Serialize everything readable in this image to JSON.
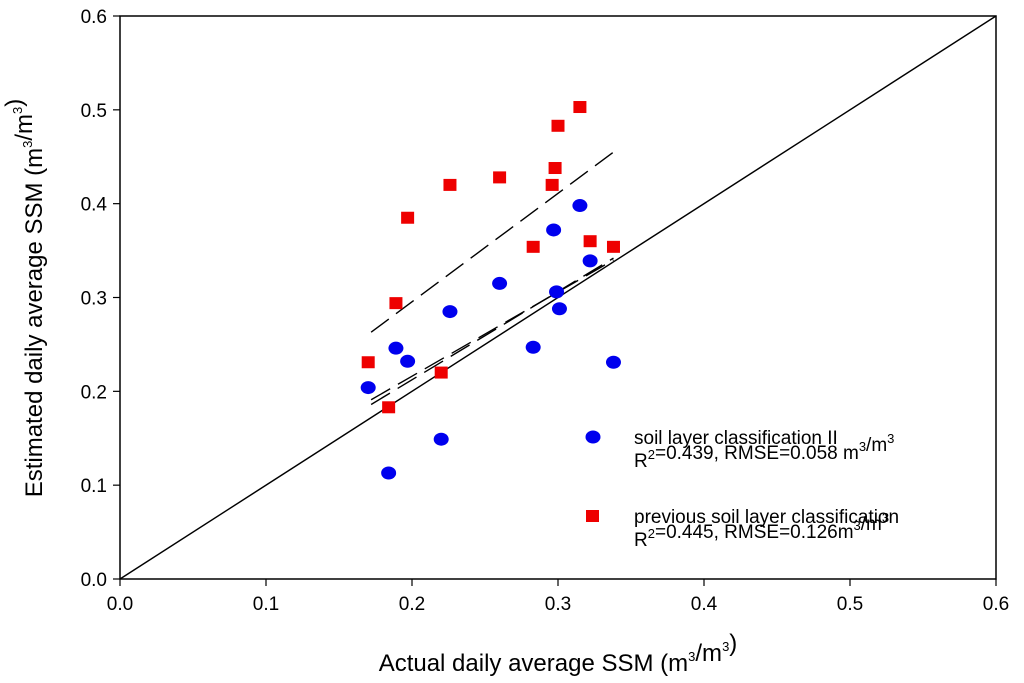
{
  "chart_data": {
    "type": "scatter",
    "xlabel": "Actual daily average SSM (m3/m3)",
    "ylabel": "Estimated daily average SSM (m3/m3)",
    "xlim": [
      0.0,
      0.6
    ],
    "ylim": [
      0.0,
      0.6
    ],
    "x_ticks": [
      "0.0",
      "0.1",
      "0.2",
      "0.3",
      "0.4",
      "0.5",
      "0.6"
    ],
    "y_ticks": [
      "0.0",
      "0.1",
      "0.2",
      "0.3",
      "0.4",
      "0.5",
      "0.6"
    ],
    "legend_position": "bottom-right",
    "reference_line": {
      "name": "1:1 line",
      "from": [
        0.0,
        0.0
      ],
      "to": [
        0.6,
        0.6
      ]
    },
    "series": [
      {
        "name": "soil layer classification II",
        "marker": "circle",
        "color": "#0000ee",
        "stats_prefix": "R",
        "stats_sup": "2",
        "stats_text": "=0.439, RMSE=0.058 m",
        "stats_unit_sup1": "3",
        "stats_unit_mid": "/m",
        "stats_unit_sup2": "3",
        "points": [
          [
            0.17,
            0.204
          ],
          [
            0.184,
            0.113
          ],
          [
            0.189,
            0.246
          ],
          [
            0.197,
            0.232
          ],
          [
            0.22,
            0.149
          ],
          [
            0.226,
            0.285
          ],
          [
            0.26,
            0.315
          ],
          [
            0.283,
            0.247
          ],
          [
            0.297,
            0.372
          ],
          [
            0.299,
            0.306
          ],
          [
            0.301,
            0.288
          ],
          [
            0.315,
            0.398
          ],
          [
            0.322,
            0.339
          ],
          [
            0.338,
            0.231
          ]
        ],
        "fit_line": {
          "from": [
            0.172,
            0.191
          ],
          "to": [
            0.338,
            0.34
          ]
        }
      },
      {
        "name": "previous soil layer classification",
        "marker": "square",
        "color": "#ee0000",
        "stats_prefix": "R",
        "stats_sup": "2",
        "stats_text": "=0.445, RMSE=0.126m",
        "stats_unit_sup1": "3",
        "stats_unit_mid": "/m",
        "stats_unit_sup2": "3",
        "points": [
          [
            0.17,
            0.231
          ],
          [
            0.184,
            0.183
          ],
          [
            0.189,
            0.294
          ],
          [
            0.197,
            0.385
          ],
          [
            0.22,
            0.22
          ],
          [
            0.226,
            0.42
          ],
          [
            0.26,
            0.428
          ],
          [
            0.283,
            0.354
          ],
          [
            0.296,
            0.42
          ],
          [
            0.298,
            0.438
          ],
          [
            0.3,
            0.483
          ],
          [
            0.315,
            0.503
          ],
          [
            0.322,
            0.36
          ],
          [
            0.338,
            0.354
          ]
        ],
        "fit_line": {
          "from": [
            0.172,
            0.263
          ],
          "to": [
            0.338,
            0.455
          ]
        }
      },
      {
        "name": "fit line (second)",
        "fit_line": {
          "from": [
            0.172,
            0.186
          ],
          "to": [
            0.338,
            0.342
          ]
        }
      }
    ]
  }
}
